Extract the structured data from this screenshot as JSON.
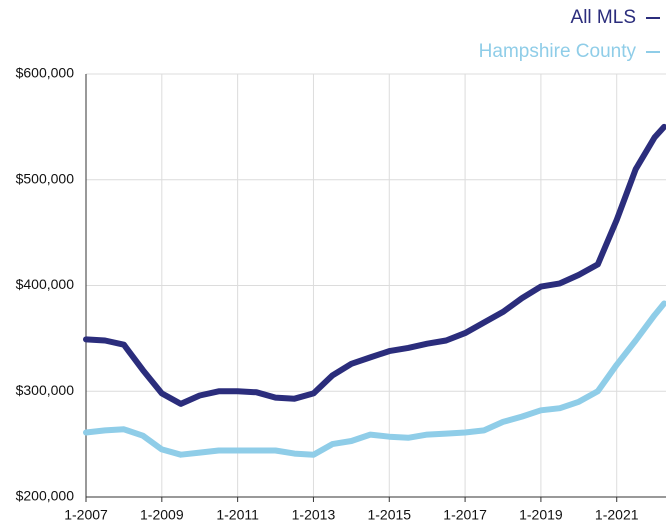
{
  "chart_data": {
    "type": "line",
    "x": [
      2007,
      2007.5,
      2008,
      2008.5,
      2009,
      2009.5,
      2010,
      2010.5,
      2011,
      2011.5,
      2012,
      2012.5,
      2013,
      2013.5,
      2014,
      2014.5,
      2015,
      2015.5,
      2016,
      2016.5,
      2017,
      2017.5,
      2018,
      2018.5,
      2019,
      2019.5,
      2020,
      2020.5,
      2021,
      2021.5,
      2022,
      2022.25
    ],
    "series": [
      {
        "name": "All MLS",
        "color": "#2b2d7c",
        "values": [
          349000,
          348000,
          344000,
          320000,
          298000,
          288000,
          296000,
          300000,
          300000,
          299000,
          294000,
          293000,
          298000,
          315000,
          326000,
          332000,
          338000,
          341000,
          345000,
          348000,
          355000,
          365000,
          375000,
          388000,
          399000,
          402000,
          410000,
          420000,
          462000,
          510000,
          540000,
          550000
        ]
      },
      {
        "name": "Hampshire County",
        "color": "#8fcde8",
        "values": [
          261000,
          263000,
          264000,
          258000,
          245000,
          240000,
          242000,
          244000,
          244000,
          244000,
          244000,
          241000,
          240000,
          250000,
          253000,
          259000,
          257000,
          256000,
          259000,
          260000,
          261000,
          263000,
          271000,
          276000,
          282000,
          284000,
          290000,
          300000,
          325000,
          348000,
          372000,
          383000
        ]
      }
    ],
    "xlim": [
      2007,
      2022.3
    ],
    "xticks": [
      {
        "value": 2007,
        "label": "1-2007"
      },
      {
        "value": 2009,
        "label": "1-2009"
      },
      {
        "value": 2011,
        "label": "1-2011"
      },
      {
        "value": 2013,
        "label": "1-2013"
      },
      {
        "value": 2015,
        "label": "1-2015"
      },
      {
        "value": 2017,
        "label": "1-2017"
      },
      {
        "value": 2019,
        "label": "1-2019"
      },
      {
        "value": 2021,
        "label": "1-2021"
      }
    ],
    "ylim": [
      200000,
      600000
    ],
    "yticks": [
      {
        "value": 200000,
        "label": "$200,000"
      },
      {
        "value": 300000,
        "label": "$300,000"
      },
      {
        "value": 400000,
        "label": "$400,000"
      },
      {
        "value": 500000,
        "label": "$500,000"
      },
      {
        "value": 600000,
        "label": "$600,000"
      }
    ],
    "grid": true
  }
}
